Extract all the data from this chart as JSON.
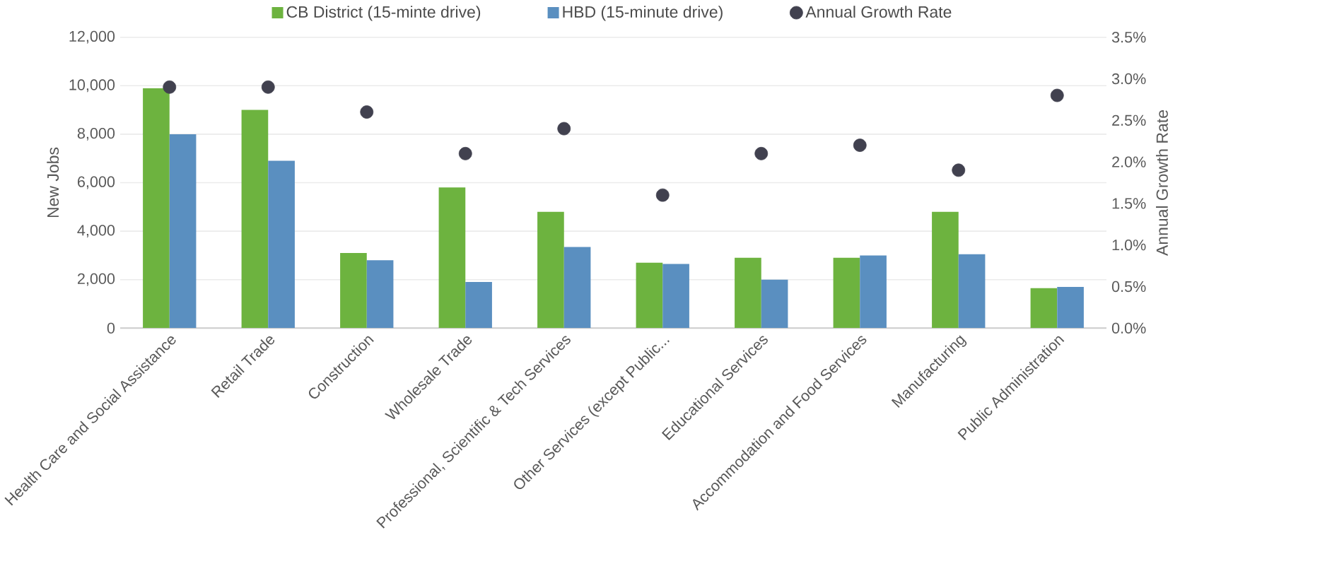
{
  "chart_data": {
    "type": "bar",
    "categories": [
      "Health Care and Social Assistance",
      "Retail Trade",
      "Construction",
      "Wholesale Trade",
      "Professional, Scientific & Tech Services",
      "Other Services (except Public...",
      "Educational Services",
      "Accommodation and Food Services",
      "Manufacturing",
      "Public Administration"
    ],
    "series": [
      {
        "name": "CB District (15-minte drive)",
        "color": "#6db33f",
        "values": [
          9900,
          9000,
          3100,
          5800,
          4800,
          2700,
          2900,
          2900,
          4800,
          1650
        ]
      },
      {
        "name": "HBD (15-minute drive)",
        "color": "#5a8fc0",
        "values": [
          8000,
          6900,
          2800,
          1900,
          3350,
          2650,
          2000,
          3000,
          3050,
          1700
        ]
      },
      {
        "name": "Annual Growth Rate",
        "type": "scatter",
        "axis": "y2",
        "marker": "circle",
        "color": "#41414f",
        "values": [
          2.9,
          2.9,
          2.6,
          2.1,
          2.4,
          1.6,
          2.1,
          2.2,
          1.9,
          2.8
        ]
      }
    ],
    "ylabel": "New Jobs",
    "y2label": "Annual Growth Rate",
    "ylim": [
      0,
      12000
    ],
    "yticks": [
      0,
      {
        "value": 2000,
        "label": "2,000"
      },
      {
        "value": 4000,
        "label": "4,000"
      },
      {
        "value": 6000,
        "label": "6,000"
      },
      {
        "value": 8000,
        "label": "8,000"
      },
      {
        "value": 10000,
        "label": "10,000"
      },
      {
        "value": 12000,
        "label": "12,000"
      }
    ],
    "y2lim": [
      0,
      3.5
    ],
    "y2ticks": [
      {
        "value": 0,
        "label": "0.0%"
      },
      {
        "value": 0.5,
        "label": "0.5%"
      },
      {
        "value": 1,
        "label": "1.0%"
      },
      {
        "value": 1.5,
        "label": "1.5%"
      },
      {
        "value": 2,
        "label": "2.0%"
      },
      {
        "value": 2.5,
        "label": "2.5%"
      },
      {
        "value": 3,
        "label": "3.0%"
      },
      {
        "value": 3.5,
        "label": "3.5%"
      }
    ],
    "grid": "y",
    "legend": "top"
  }
}
